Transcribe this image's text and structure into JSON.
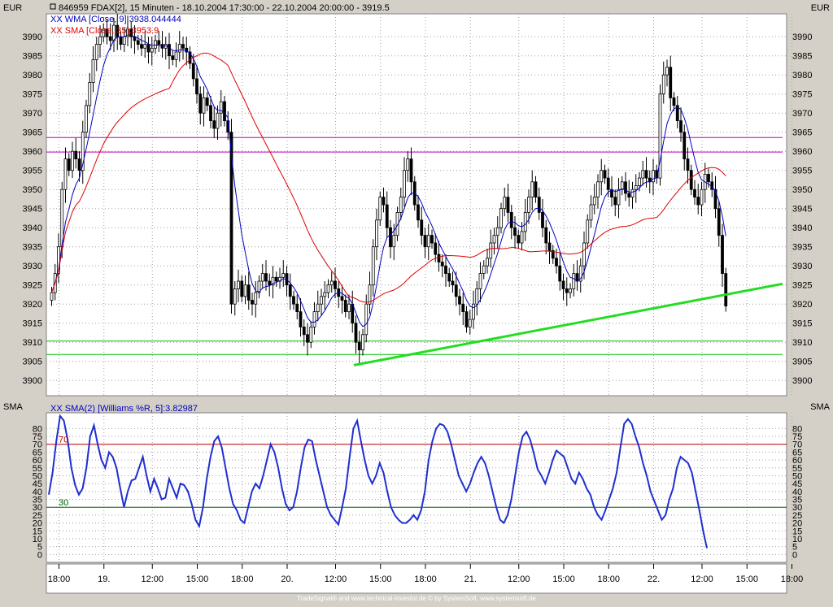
{
  "header": {
    "title": "846959  FDAX[2], 15 Minuten - 18.10.2004 17:30:00 - 22.10.2004 20:00:00 - 3919.5",
    "unit_left": "EUR",
    "unit_right": "EUR",
    "wma_label": "XX WMA [Close, 9]:3938.044444",
    "sma_label": "XX SMA [Close, 35]:3953.9"
  },
  "lower_pane": {
    "title_left": "SMA",
    "title_right": "SMA",
    "indicator_label": "XX SMA(2) [Williams %R, 5]:3.82987",
    "level_high_label": "70",
    "level_low_label": "30"
  },
  "footer": {
    "credit": "TradeSignal® and www.technical-investor.de © by SystemSoft, www.systemsoft.de"
  },
  "colors": {
    "background": "#ffffff",
    "frame": "#d4d0c8",
    "candle": "#000000",
    "wma": "#0000c0",
    "sma": "#e00000",
    "resistance": "#c000c0",
    "support": "#00c000",
    "trendline": "#22dd22",
    "indicator": "#1f2fd0",
    "level_high": "#c00000",
    "level_low": "#006000"
  },
  "chart_data": [
    {
      "type": "candlestick",
      "y_ticks": [
        3900,
        3905,
        3910,
        3915,
        3920,
        3925,
        3930,
        3935,
        3940,
        3945,
        3950,
        3955,
        3960,
        3965,
        3970,
        3975,
        3980,
        3985,
        3990
      ],
      "ylim": [
        3896,
        3996
      ],
      "x_tick_labels": [
        "18:00",
        "19.",
        "12:00",
        "15:00",
        "18:00",
        "20.",
        "12:00",
        "15:00",
        "18:00",
        "21.",
        "12:00",
        "15:00",
        "18:00",
        "22.",
        "12:00",
        "15:00",
        "18:00"
      ],
      "x_tick_bars": [
        2,
        15,
        29,
        42,
        55,
        68,
        82,
        95,
        108,
        121,
        135,
        148,
        161,
        174,
        188,
        201,
        214
      ],
      "close": [
        3923,
        3928,
        3935,
        3950,
        3958,
        3955,
        3960,
        3958,
        3955,
        3965,
        3972,
        3978,
        3984,
        3988,
        3990,
        3992,
        3990,
        3989,
        3993,
        3990,
        3988,
        3990,
        3992,
        3990,
        3989,
        3988,
        3987,
        3988,
        3986,
        3987,
        3989,
        3988,
        3987,
        3988,
        3985,
        3984,
        3986,
        3988,
        3987,
        3986,
        3983,
        3979,
        3975,
        3970,
        3974,
        3972,
        3968,
        3966,
        3970,
        3973,
        3968,
        3965,
        3920,
        3924,
        3926,
        3922,
        3925,
        3921,
        3920,
        3923,
        3926,
        3928,
        3926,
        3925,
        3927,
        3926,
        3927,
        3928,
        3925,
        3922,
        3920,
        3918,
        3914,
        3912,
        3910,
        3914,
        3918,
        3920,
        3922,
        3923,
        3925,
        3926,
        3924,
        3922,
        3921,
        3918,
        3920,
        3915,
        3910,
        3908,
        3912,
        3920,
        3925,
        3935,
        3942,
        3948,
        3946,
        3940,
        3935,
        3938,
        3944,
        3948,
        3955,
        3958,
        3952,
        3946,
        3942,
        3938,
        3935,
        3938,
        3936,
        3933,
        3931,
        3930,
        3928,
        3926,
        3925,
        3922,
        3920,
        3918,
        3914,
        3916,
        3920,
        3924,
        3928,
        3930,
        3932,
        3936,
        3938,
        3940,
        3945,
        3948,
        3944,
        3940,
        3938,
        3936,
        3939,
        3944,
        3948,
        3952,
        3948,
        3944,
        3940,
        3936,
        3934,
        3932,
        3930,
        3926,
        3924,
        3923,
        3924,
        3928,
        3926,
        3930,
        3936,
        3942,
        3946,
        3948,
        3952,
        3955,
        3953,
        3950,
        3948,
        3946,
        3950,
        3952,
        3949,
        3948,
        3950,
        3951,
        3953,
        3955,
        3953,
        3952,
        3955,
        3953,
        3975,
        3980,
        3982,
        3974,
        3972,
        3968,
        3965,
        3958,
        3955,
        3950,
        3948,
        3946,
        3950,
        3954,
        3952,
        3950,
        3945,
        3938,
        3928,
        3919.5
      ]
    },
    {
      "type": "line",
      "series": [
        {
          "label": "XX SMA(2) [Williams %R, 5]:3.82987",
          "values": [
            38,
            52,
            72,
            88,
            85,
            73,
            55,
            44,
            38,
            42,
            55,
            75,
            82,
            70,
            60,
            55,
            65,
            62,
            55,
            42,
            30,
            40,
            47,
            48,
            55,
            62,
            50,
            40,
            48,
            42,
            35,
            36,
            48,
            42,
            36,
            45,
            44,
            40,
            32,
            22,
            18,
            30,
            48,
            62,
            72,
            75,
            68,
            55,
            42,
            32,
            28,
            22,
            20,
            30,
            40,
            45,
            42,
            50,
            60,
            70,
            65,
            55,
            42,
            32,
            28,
            30,
            40,
            55,
            68,
            73,
            72,
            60,
            50,
            40,
            30,
            25,
            22,
            19,
            30,
            42,
            62,
            80,
            85,
            72,
            60,
            50,
            45,
            50,
            58,
            52,
            40,
            30,
            25,
            22,
            20,
            20,
            22,
            25,
            22,
            28,
            40,
            60,
            72,
            80,
            83,
            82,
            78,
            70,
            60,
            50,
            45,
            40,
            45,
            52,
            58,
            62,
            58,
            50,
            40,
            30,
            22,
            20,
            25,
            35,
            50,
            65,
            75,
            78,
            73,
            64,
            54,
            50,
            45,
            52,
            60,
            66,
            64,
            62,
            55,
            48,
            45,
            52,
            48,
            42,
            38,
            30,
            25,
            22,
            28,
            35,
            42,
            52,
            68,
            83,
            86,
            83,
            75,
            68,
            58,
            50,
            40,
            34,
            28,
            22,
            25,
            35,
            42,
            55,
            62,
            60,
            58,
            52,
            40,
            28,
            15,
            4
          ]
        }
      ],
      "y_ticks": [
        0,
        5,
        10,
        15,
        20,
        25,
        30,
        35,
        40,
        45,
        50,
        55,
        60,
        65,
        70,
        75,
        80
      ],
      "ylim": [
        -5,
        90
      ],
      "levels": [
        70,
        30
      ]
    }
  ]
}
